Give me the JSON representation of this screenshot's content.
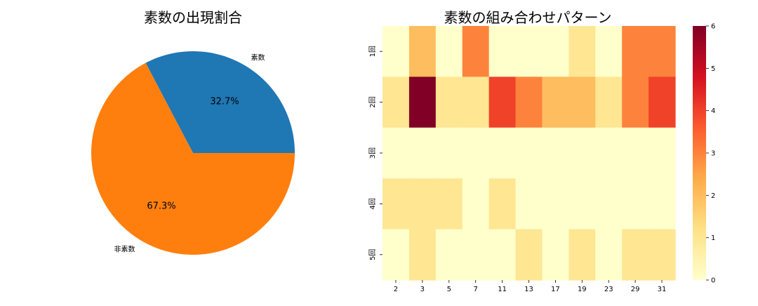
{
  "chart_data": [
    {
      "type": "pie",
      "title": "素数の出現割合",
      "slices": [
        {
          "label": "素数",
          "value": 32.7,
          "pct_label": "32.7%",
          "color": "#1f77b4"
        },
        {
          "label": "非素数",
          "value": 67.3,
          "pct_label": "67.3%",
          "color": "#ff7f0e"
        }
      ]
    },
    {
      "type": "heatmap",
      "title": "素数の組み合わせパターン",
      "x_labels": [
        "2",
        "3",
        "5",
        "7",
        "11",
        "13",
        "17",
        "19",
        "23",
        "29",
        "31"
      ],
      "y_labels": [
        "1回",
        "2回",
        "3回",
        "4回",
        "5回"
      ],
      "values": [
        [
          0,
          2,
          0,
          3,
          0,
          0,
          0,
          1,
          0,
          3,
          3
        ],
        [
          1,
          6,
          1,
          1,
          4,
          3,
          2,
          2,
          1,
          3,
          4
        ],
        [
          0,
          0,
          0,
          0,
          0,
          0,
          0,
          0,
          0,
          0,
          0
        ],
        [
          1,
          1,
          1,
          0,
          1,
          0,
          0,
          0,
          0,
          0,
          0
        ],
        [
          0,
          1,
          0,
          0,
          0,
          1,
          0,
          1,
          0,
          1,
          1
        ]
      ],
      "colorbar": {
        "min": 0,
        "max": 6,
        "ticks": [
          "0",
          "1",
          "2",
          "3",
          "4",
          "5",
          "6"
        ]
      },
      "colormap": "YlOrRd",
      "colors": [
        "#ffffcc",
        "#fee187",
        "#feab49",
        "#fc5b2e",
        "#d41020",
        "#800026"
      ]
    }
  ]
}
